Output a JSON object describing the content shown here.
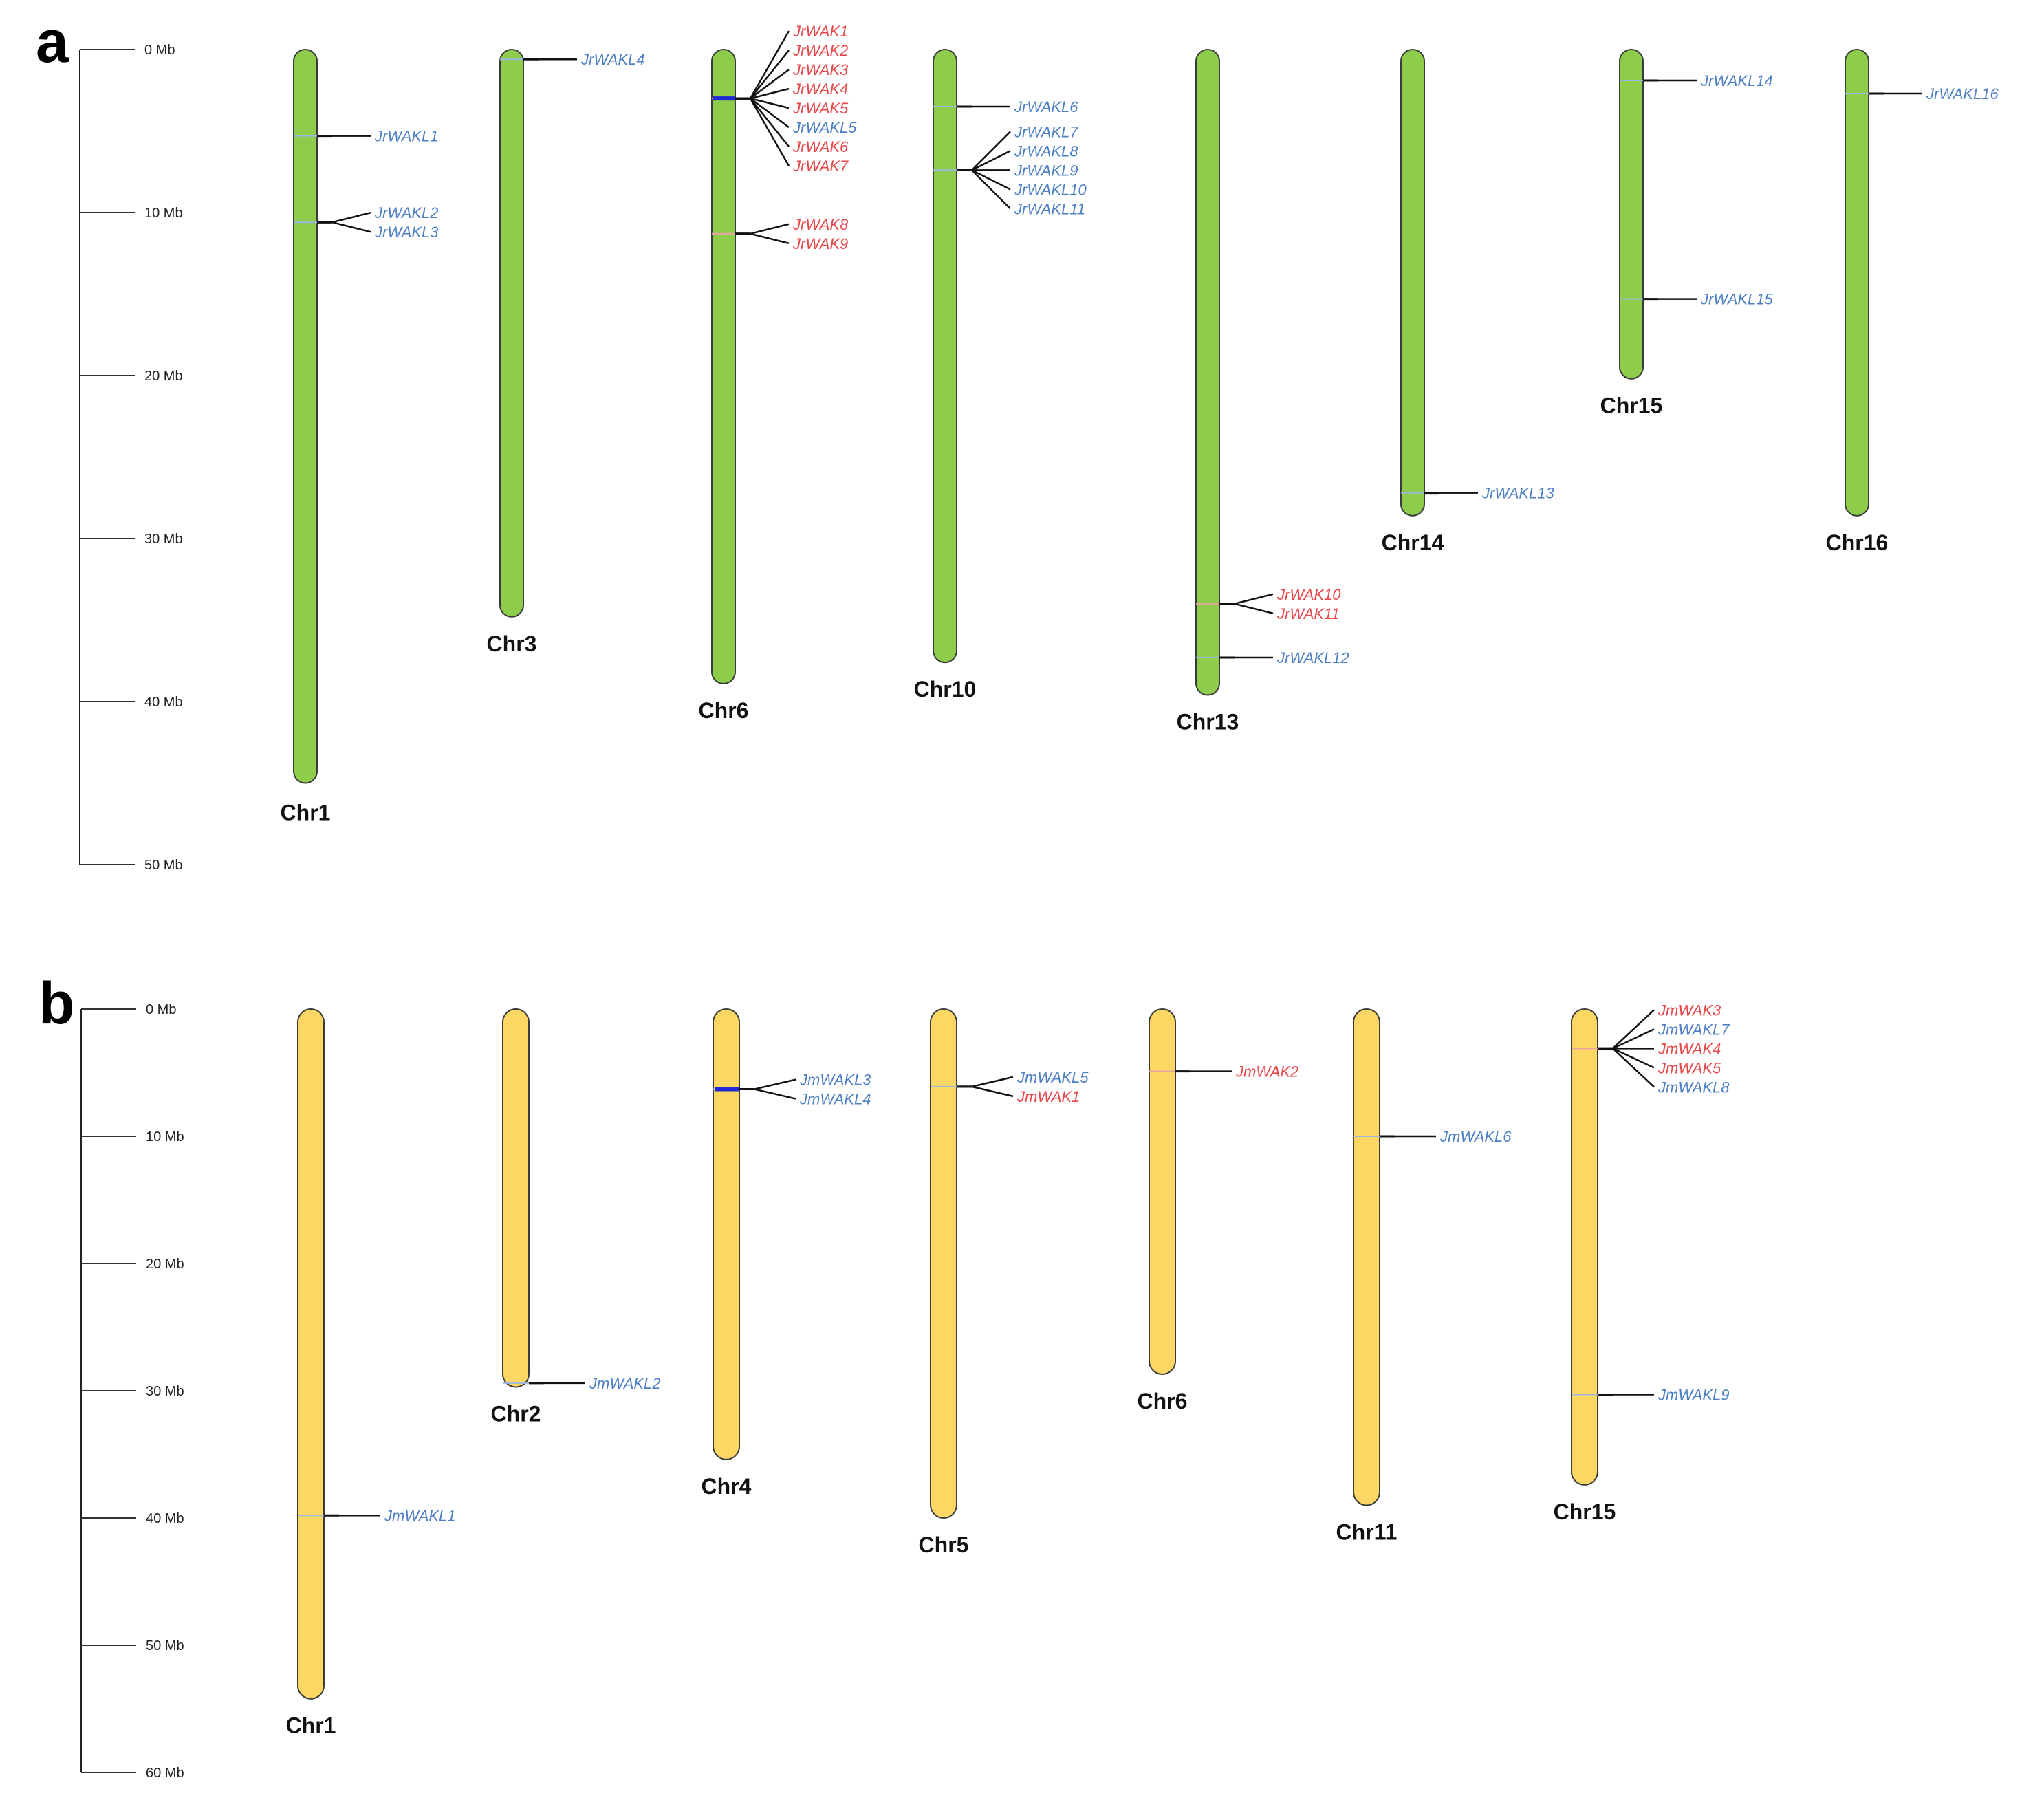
{
  "colors": {
    "wak": "#e8474a",
    "wakl": "#4d7fc4",
    "chr_a_fill": "#8dcd4b",
    "chr_b_fill": "#fcd764",
    "chr_stroke": "#3a3a3a",
    "cluster_mark": "#1f27d6"
  },
  "panels": [
    {
      "letter": "a",
      "scale": {
        "unit": "Mb",
        "max": 50,
        "ticks": [
          {
            "value": 0,
            "label": "0 Mb"
          },
          {
            "value": 10,
            "label": "10 Mb"
          },
          {
            "value": 20,
            "label": "20 Mb"
          },
          {
            "value": 30,
            "label": "30 Mb"
          },
          {
            "value": 40,
            "label": "40 Mb"
          },
          {
            "value": 50,
            "label": "50 Mb"
          }
        ]
      },
      "chromosomes": [
        {
          "name": "Chr1",
          "length": 45.0,
          "genes": [
            {
              "name": "JrWAKL1",
              "type": "wakl",
              "pos": 5.3
            },
            {
              "name": "JrWAKL2",
              "type": "wakl",
              "pos": 10.6
            },
            {
              "name": "JrWAKL3",
              "type": "wakl",
              "pos": 10.6
            }
          ]
        },
        {
          "name": "Chr3",
          "length": 34.8,
          "genes": [
            {
              "name": "JrWAKL4",
              "type": "wakl",
              "pos": 0.6
            }
          ]
        },
        {
          "name": "Chr6",
          "length": 38.9,
          "genes": [
            {
              "name": "JrWAK1",
              "type": "wak",
              "pos": 3.0
            },
            {
              "name": "JrWAK2",
              "type": "wak",
              "pos": 3.0
            },
            {
              "name": "JrWAK3",
              "type": "wak",
              "pos": 3.0
            },
            {
              "name": "JrWAK4",
              "type": "wak",
              "pos": 3.1
            },
            {
              "name": "JrWAK5",
              "type": "wak",
              "pos": 3.1
            },
            {
              "name": "JrWAKL5",
              "type": "wakl",
              "pos": 3.1
            },
            {
              "name": "JrWAK6",
              "type": "wak",
              "pos": 3.2
            },
            {
              "name": "JrWAK7",
              "type": "wak",
              "pos": 3.2
            },
            {
              "name": "JrWAK8",
              "type": "wak",
              "pos": 11.3
            },
            {
              "name": "JrWAK9",
              "type": "wak",
              "pos": 11.3
            }
          ]
        },
        {
          "name": "Chr10",
          "length": 37.6,
          "genes": [
            {
              "name": "JrWAKL6",
              "type": "wakl",
              "pos": 3.5
            },
            {
              "name": "JrWAKL7",
              "type": "wakl",
              "pos": 7.4
            },
            {
              "name": "JrWAKL8",
              "type": "wakl",
              "pos": 7.4
            },
            {
              "name": "JrWAKL9",
              "type": "wakl",
              "pos": 7.5
            },
            {
              "name": "JrWAKL10",
              "type": "wakl",
              "pos": 7.5
            },
            {
              "name": "JrWAKL11",
              "type": "wakl",
              "pos": 7.5
            }
          ]
        },
        {
          "name": "Chr13",
          "length": 39.6,
          "genes": [
            {
              "name": "JrWAK10",
              "type": "wak",
              "pos": 34.0
            },
            {
              "name": "JrWAK11",
              "type": "wak",
              "pos": 34.0
            },
            {
              "name": "JrWAKL12",
              "type": "wakl",
              "pos": 37.3
            }
          ]
        },
        {
          "name": "Chr14",
          "length": 28.6,
          "genes": [
            {
              "name": "JrWAKL13",
              "type": "wakl",
              "pos": 27.2
            }
          ]
        },
        {
          "name": "Chr15",
          "length": 20.2,
          "genes": [
            {
              "name": "JrWAKL14",
              "type": "wakl",
              "pos": 1.9
            },
            {
              "name": "JrWAKL15",
              "type": "wakl",
              "pos": 15.3
            }
          ]
        },
        {
          "name": "Chr16",
          "length": 28.6,
          "genes": [
            {
              "name": "JrWAKL16",
              "type": "wakl",
              "pos": 2.7
            }
          ]
        }
      ]
    },
    {
      "letter": "b",
      "scale": {
        "unit": "Mb",
        "max": 60,
        "ticks": [
          {
            "value": 0,
            "label": "0 Mb"
          },
          {
            "value": 10,
            "label": "10 Mb"
          },
          {
            "value": 20,
            "label": "20 Mb"
          },
          {
            "value": 30,
            "label": "30 Mb"
          },
          {
            "value": 40,
            "label": "40 Mb"
          },
          {
            "value": 50,
            "label": "50 Mb"
          },
          {
            "value": 60,
            "label": "60 Mb"
          }
        ]
      },
      "chromosomes": [
        {
          "name": "Chr1",
          "length": 54.2,
          "genes": [
            {
              "name": "JmWAKL1",
              "type": "wakl",
              "pos": 39.8
            }
          ]
        },
        {
          "name": "Chr2",
          "length": 29.7,
          "genes": [
            {
              "name": "JmWAKL2",
              "type": "wakl",
              "pos": 29.4
            }
          ]
        },
        {
          "name": "Chr4",
          "length": 35.4,
          "genes": [
            {
              "name": "JmWAKL3",
              "type": "wakl",
              "pos": 6.3
            },
            {
              "name": "JmWAKL4",
              "type": "wakl",
              "pos": 6.3
            }
          ]
        },
        {
          "name": "Chr5",
          "length": 40.0,
          "genes": [
            {
              "name": "JmWAKL5",
              "type": "wakl",
              "pos": 6.1
            },
            {
              "name": "JmWAK1",
              "type": "wak",
              "pos": 6.1
            }
          ]
        },
        {
          "name": "Chr6",
          "length": 28.7,
          "genes": [
            {
              "name": "JmWAK2",
              "type": "wak",
              "pos": 4.9
            }
          ]
        },
        {
          "name": "Chr11",
          "length": 39.0,
          "genes": [
            {
              "name": "JmWAKL6",
              "type": "wakl",
              "pos": 10.0
            }
          ]
        },
        {
          "name": "Chr15",
          "length": 37.4,
          "genes": [
            {
              "name": "JmWAK3",
              "type": "wak",
              "pos": 3.1
            },
            {
              "name": "JmWAKL7",
              "type": "wakl",
              "pos": 3.1
            },
            {
              "name": "JmWAK4",
              "type": "wak",
              "pos": 3.1
            },
            {
              "name": "JmWAK5",
              "type": "wak",
              "pos": 3.1
            },
            {
              "name": "JmWAKL8",
              "type": "wakl",
              "pos": 3.2
            },
            {
              "name": "JmWAKL9",
              "type": "wakl",
              "pos": 30.3
            }
          ]
        }
      ]
    }
  ]
}
